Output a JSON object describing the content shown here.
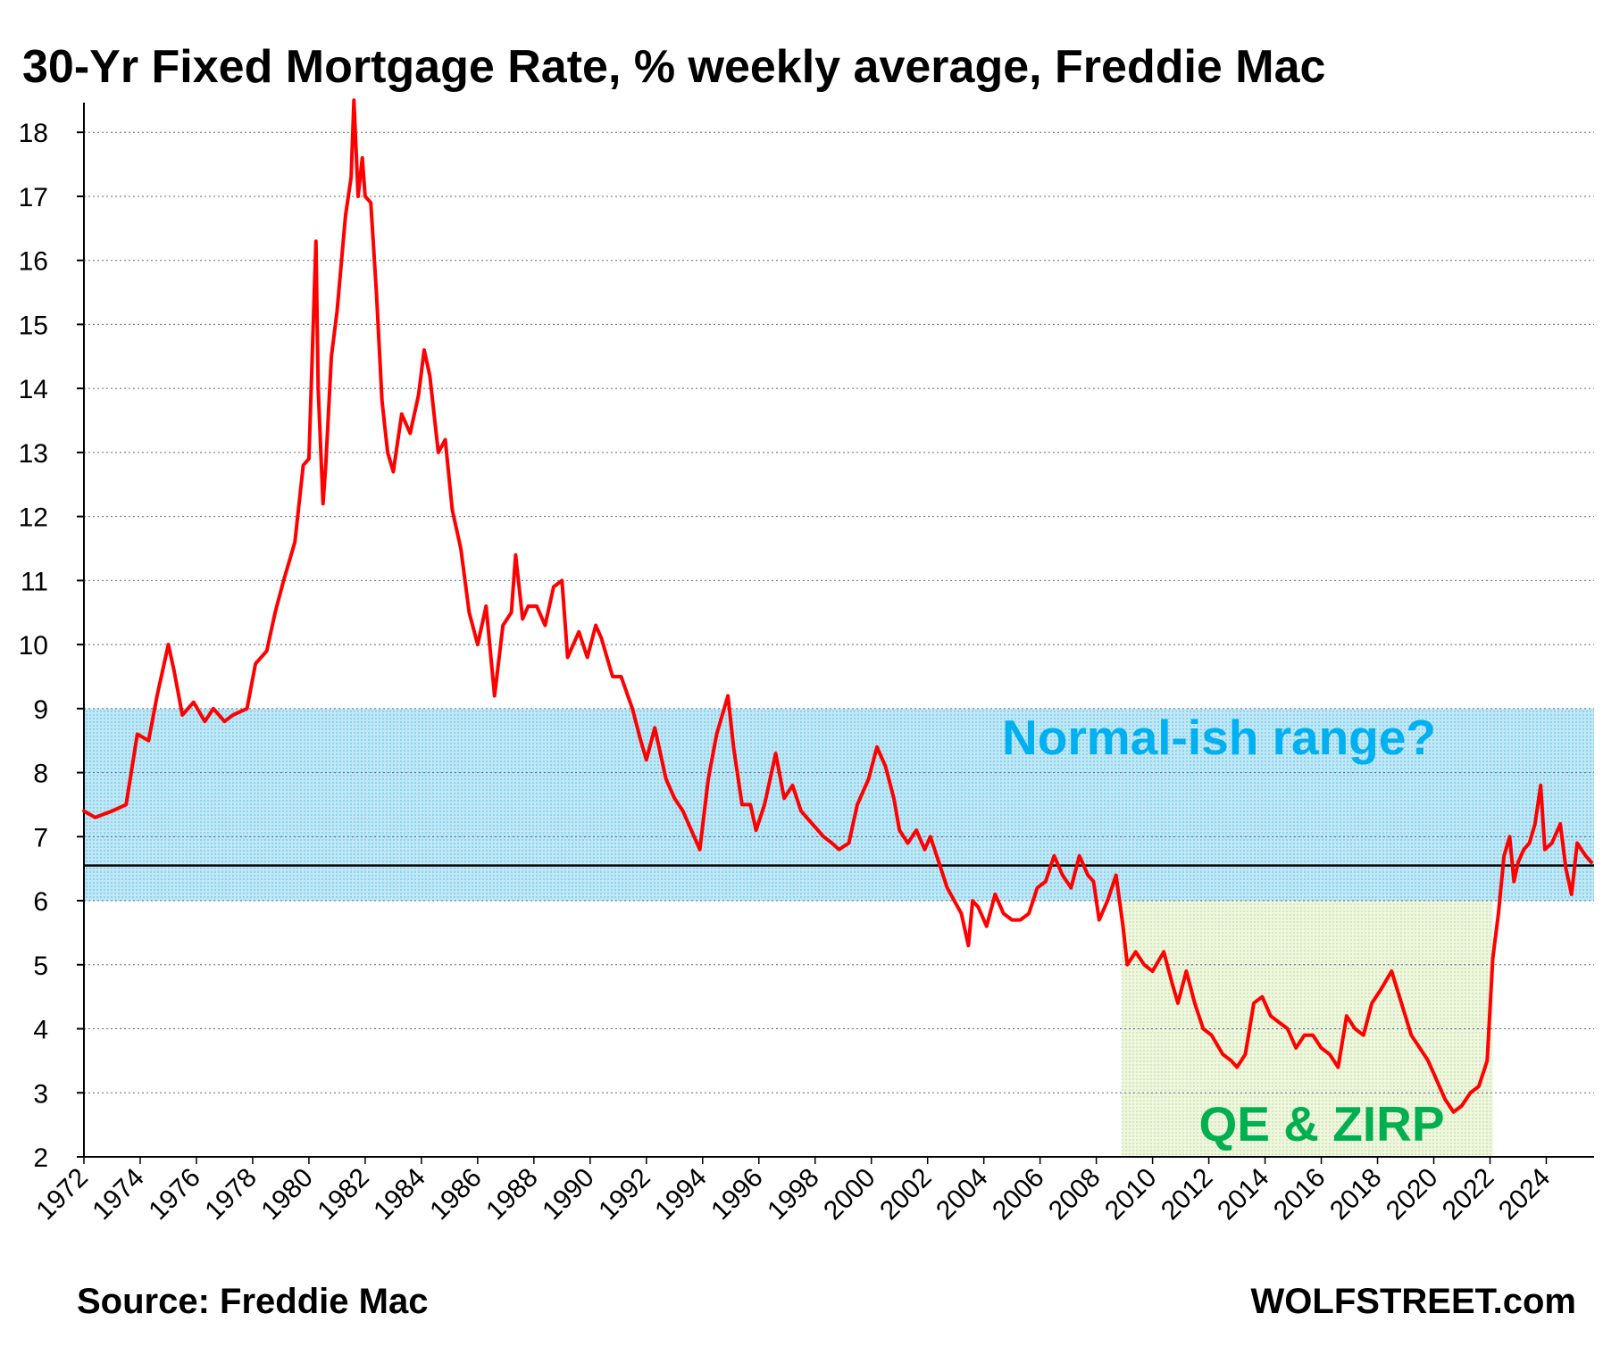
{
  "chart_data": {
    "type": "line",
    "title": "30-Yr Fixed Mortgage Rate, % weekly average, Freddie Mac",
    "xlabel": "",
    "ylabel": "",
    "xlim": [
      1972,
      2025.7
    ],
    "ylim": [
      2,
      18.7
    ],
    "yticks": [
      2,
      3,
      4,
      5,
      6,
      7,
      8,
      9,
      10,
      11,
      12,
      13,
      14,
      15,
      16,
      17,
      18
    ],
    "xticks": [
      "1972",
      "1974",
      "1976",
      "1978",
      "1980",
      "1982",
      "1984",
      "1986",
      "1988",
      "1990",
      "1992",
      "1994",
      "1996",
      "1998",
      "2000",
      "2002",
      "2004",
      "2006",
      "2008",
      "2010",
      "2012",
      "2014",
      "2016",
      "2018",
      "2020",
      "2022",
      "2024"
    ],
    "grid": "horizontal dotted",
    "series": [
      {
        "color": "#ff0000",
        "x": [
          1972.0,
          1972.4,
          1973.0,
          1973.5,
          1973.9,
          1974.3,
          1974.6,
          1975.0,
          1975.2,
          1975.5,
          1975.9,
          1976.3,
          1976.6,
          1977.0,
          1977.3,
          1977.8,
          1978.1,
          1978.5,
          1978.8,
          1979.1,
          1979.5,
          1979.8,
          1980.0,
          1980.25,
          1980.33,
          1980.5,
          1980.6,
          1980.8,
          1981.0,
          1981.3,
          1981.5,
          1981.6,
          1981.75,
          1981.9,
          1982.0,
          1982.2,
          1982.4,
          1982.6,
          1982.8,
          1983.0,
          1983.3,
          1983.6,
          1983.9,
          1984.1,
          1984.3,
          1984.6,
          1984.85,
          1985.1,
          1985.4,
          1985.7,
          1986.0,
          1986.3,
          1986.6,
          1986.9,
          1987.2,
          1987.35,
          1987.6,
          1987.8,
          1988.1,
          1988.4,
          1988.7,
          1989.0,
          1989.2,
          1989.6,
          1989.9,
          1990.2,
          1990.4,
          1990.8,
          1991.1,
          1991.5,
          1991.8,
          1992.0,
          1992.3,
          1992.7,
          1993.0,
          1993.3,
          1993.7,
          1993.9,
          1994.2,
          1994.5,
          1994.9,
          1995.1,
          1995.4,
          1995.7,
          1995.9,
          1996.2,
          1996.6,
          1996.9,
          1997.2,
          1997.5,
          1997.9,
          1998.3,
          1998.6,
          1998.85,
          1999.2,
          1999.5,
          1999.9,
          2000.2,
          2000.5,
          2000.8,
          2001.0,
          2001.3,
          2001.6,
          2001.9,
          2002.1,
          2002.4,
          2002.7,
          2002.95,
          2003.2,
          2003.45,
          2003.6,
          2003.8,
          2004.1,
          2004.4,
          2004.7,
          2005.0,
          2005.3,
          2005.6,
          2005.9,
          2006.2,
          2006.5,
          2006.8,
          2007.1,
          2007.4,
          2007.7,
          2007.9,
          2008.1,
          2008.4,
          2008.7,
          2008.95,
          2009.1,
          2009.4,
          2009.7,
          2010.0,
          2010.4,
          2010.7,
          2010.9,
          2011.2,
          2011.5,
          2011.8,
          2012.1,
          2012.5,
          2012.8,
          2013.0,
          2013.3,
          2013.6,
          2013.9,
          2014.2,
          2014.5,
          2014.8,
          2015.1,
          2015.4,
          2015.7,
          2016.0,
          2016.3,
          2016.6,
          2016.9,
          2017.2,
          2017.5,
          2017.8,
          2018.1,
          2018.5,
          2018.85,
          2019.2,
          2019.5,
          2019.8,
          2020.1,
          2020.4,
          2020.7,
          2021.0,
          2021.3,
          2021.6,
          2021.9,
          2022.1,
          2022.3,
          2022.5,
          2022.7,
          2022.85,
          2023.0,
          2023.2,
          2023.4,
          2023.6,
          2023.8,
          2023.95,
          2024.2,
          2024.5,
          2024.7,
          2024.9,
          2025.1,
          2025.4,
          2025.6
        ],
        "y": [
          7.4,
          7.3,
          7.4,
          7.5,
          8.6,
          8.5,
          9.2,
          10.0,
          9.6,
          8.9,
          9.1,
          8.8,
          9.0,
          8.8,
          8.9,
          9.0,
          9.7,
          9.9,
          10.5,
          11.0,
          11.6,
          12.8,
          12.9,
          16.3,
          14.0,
          12.2,
          12.8,
          14.5,
          15.2,
          16.7,
          17.3,
          18.5,
          17.0,
          17.6,
          17.0,
          16.9,
          15.5,
          13.8,
          13.0,
          12.7,
          13.6,
          13.3,
          13.9,
          14.6,
          14.2,
          13.0,
          13.2,
          12.1,
          11.5,
          10.5,
          10.0,
          10.6,
          9.2,
          10.3,
          10.5,
          11.4,
          10.4,
          10.6,
          10.6,
          10.3,
          10.9,
          11.0,
          9.8,
          10.2,
          9.8,
          10.3,
          10.1,
          9.5,
          9.5,
          9.0,
          8.5,
          8.2,
          8.7,
          7.9,
          7.6,
          7.4,
          7.0,
          6.8,
          7.9,
          8.6,
          9.2,
          8.4,
          7.5,
          7.5,
          7.1,
          7.5,
          8.3,
          7.6,
          7.8,
          7.4,
          7.2,
          7.0,
          6.9,
          6.8,
          6.9,
          7.5,
          7.9,
          8.4,
          8.1,
          7.6,
          7.1,
          6.9,
          7.1,
          6.8,
          7.0,
          6.6,
          6.2,
          6.0,
          5.8,
          5.3,
          6.0,
          5.9,
          5.6,
          6.1,
          5.8,
          5.7,
          5.7,
          5.8,
          6.2,
          6.3,
          6.7,
          6.4,
          6.2,
          6.7,
          6.4,
          6.3,
          5.7,
          6.0,
          6.4,
          5.6,
          5.0,
          5.2,
          5.0,
          4.9,
          5.2,
          4.7,
          4.4,
          4.9,
          4.4,
          4.0,
          3.9,
          3.6,
          3.5,
          3.4,
          3.6,
          4.4,
          4.5,
          4.2,
          4.1,
          4.0,
          3.7,
          3.9,
          3.9,
          3.7,
          3.6,
          3.4,
          4.2,
          4.0,
          3.9,
          4.4,
          4.6,
          4.9,
          4.4,
          3.9,
          3.7,
          3.5,
          3.2,
          2.9,
          2.7,
          2.8,
          3.0,
          3.1,
          3.5,
          5.1,
          5.8,
          6.7,
          7.0,
          6.3,
          6.6,
          6.8,
          6.9,
          7.2,
          7.8,
          6.8,
          6.9,
          7.2,
          6.5,
          6.1,
          6.9,
          6.7,
          6.6
        ]
      }
    ],
    "reference_line": {
      "y": 6.55,
      "color": "#000000"
    },
    "bands": [
      {
        "label": "Normal-ish range?",
        "y0": 6,
        "y1": 9,
        "x0": 1972,
        "x1": 2025.7,
        "fill": "#a6dcef",
        "text_color": "#00b0f0"
      },
      {
        "label": "QE & ZIRP",
        "y0": 2,
        "y1": 6,
        "x0": 2008.9,
        "x1": 2022.1,
        "fill": "#e4f0cf",
        "text_color": "#00b050"
      }
    ]
  },
  "footer": {
    "source": "Source: Freddie Mac",
    "brand": "WOLFSTREET.com"
  }
}
